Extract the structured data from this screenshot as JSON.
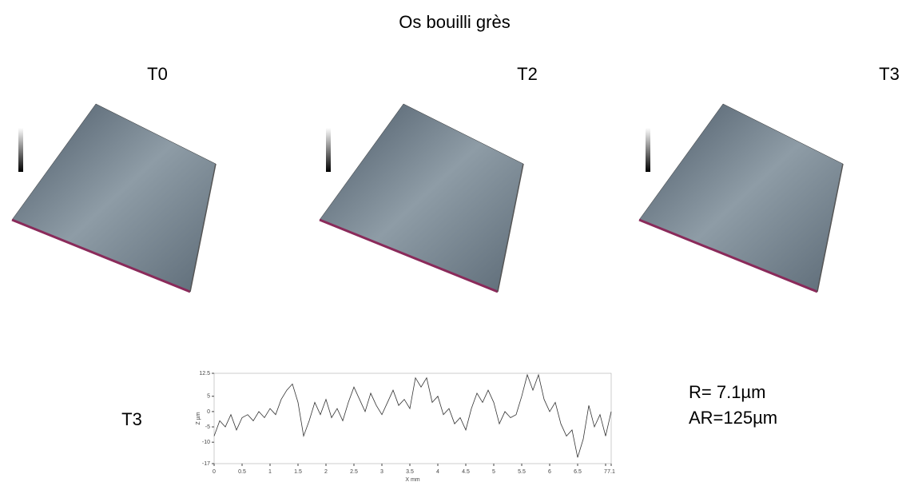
{
  "header": {
    "title": "Os bouilli grès"
  },
  "panels": [
    {
      "label": "T0"
    },
    {
      "label": "T2"
    },
    {
      "label": "T3"
    }
  ],
  "profile_label": "T3",
  "roughness": [
    "R= 7.1µm",
    "AR=125µm"
  ],
  "chart_data": {
    "type": "line",
    "xlabel": "X mm",
    "ylabel": "Z µm",
    "color": "#333333",
    "x": [
      0,
      0.1,
      0.2,
      0.3,
      0.4,
      0.5,
      0.6,
      0.7,
      0.8,
      0.9,
      1.0,
      1.1,
      1.2,
      1.3,
      1.4,
      1.5,
      1.6,
      1.7,
      1.8,
      1.9,
      2.0,
      2.1,
      2.2,
      2.3,
      2.4,
      2.5,
      2.6,
      2.7,
      2.8,
      2.9,
      3.0,
      3.1,
      3.2,
      3.3,
      3.4,
      3.5,
      3.6,
      3.7,
      3.8,
      3.9,
      4.0,
      4.1,
      4.2,
      4.3,
      4.4,
      4.5,
      4.6,
      4.7,
      4.8,
      4.9,
      5.0,
      5.1,
      5.2,
      5.3,
      5.4,
      5.5,
      5.6,
      5.7,
      5.8,
      5.9,
      6.0,
      6.1,
      6.2,
      6.3,
      6.4,
      6.5,
      6.6,
      6.7,
      6.8,
      6.9,
      7.0,
      7.1
    ],
    "values": [
      -8,
      -3,
      -5,
      -1,
      -6,
      -2,
      -1,
      -3,
      0,
      -2,
      1,
      -1,
      4,
      7,
      9,
      3,
      -8,
      -3,
      3,
      -1,
      4,
      -2,
      1,
      -3,
      3,
      8,
      4,
      0,
      6,
      2,
      -1,
      3,
      7,
      2,
      4,
      1,
      11,
      8,
      11,
      3,
      5,
      -1,
      1,
      -4,
      -2,
      -6,
      1,
      6,
      3,
      7,
      3,
      -4,
      0,
      -2,
      -1,
      5,
      12,
      7,
      12,
      4,
      0,
      3,
      -4,
      -8,
      -6,
      -15,
      -9,
      2,
      -5,
      -1,
      -8,
      0
    ],
    "xlim": [
      0,
      7.1
    ],
    "xticks": [
      0,
      0.5,
      1,
      1.5,
      2,
      2.5,
      3,
      3.5,
      4,
      4.5,
      5,
      5.5,
      6,
      6.5,
      7,
      7.1
    ],
    "ylim": [
      -17,
      12.5
    ],
    "yticks": [
      -17,
      -10,
      -5,
      0,
      5,
      12.5
    ]
  }
}
